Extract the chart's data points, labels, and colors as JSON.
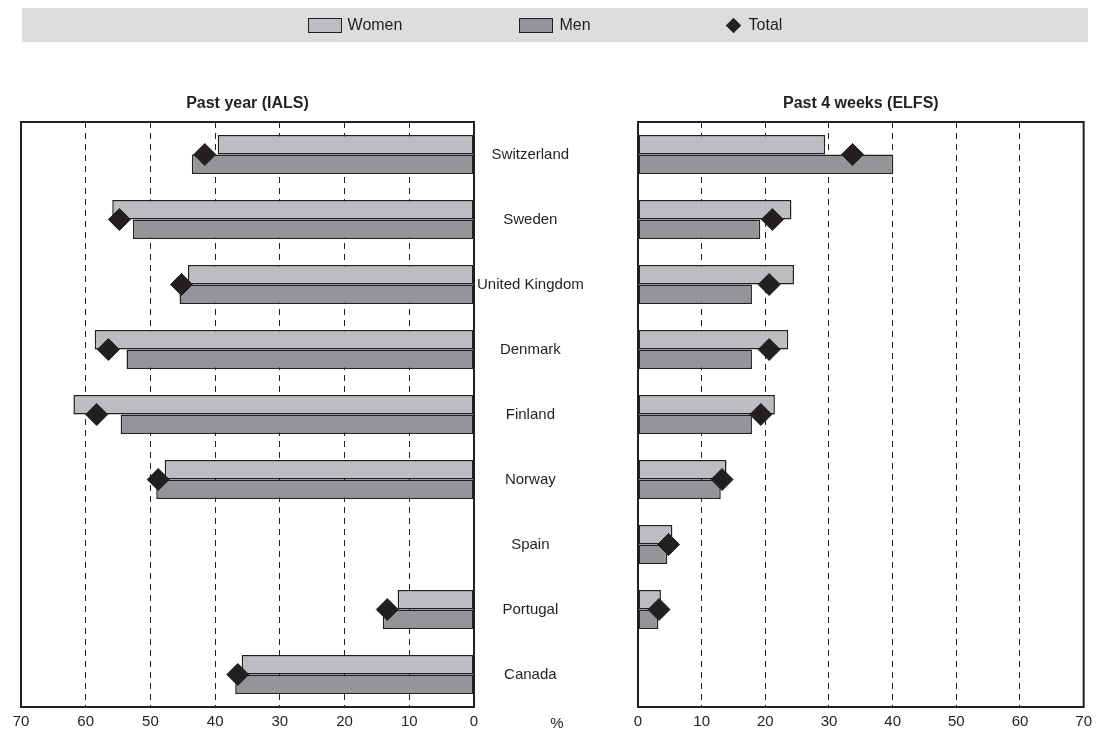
{
  "chart_data": [
    {
      "type": "bar",
      "orientation": "horizontal",
      "title": "Past year (IALS)",
      "xlabel": "%",
      "categories": [
        "Switzerland",
        "Sweden",
        "United Kingdom",
        "Denmark",
        "Finland",
        "Norway",
        "Spain",
        "Portugal",
        "Canada"
      ],
      "series": [
        {
          "name": "Women",
          "color": "#bcbdc0",
          "values": [
            39.6,
            55.9,
            44.2,
            58.6,
            61.9,
            47.8,
            null,
            11.8,
            35.9
          ]
        },
        {
          "name": "Men",
          "color": "#939598",
          "values": [
            43.6,
            52.7,
            45.5,
            53.7,
            54.6,
            49.1,
            null,
            14.1,
            36.9
          ]
        },
        {
          "name": "Total",
          "type": "scatter",
          "marker": "diamond",
          "color": "#231f20",
          "values": [
            41.6,
            54.8,
            45.2,
            56.5,
            58.3,
            48.8,
            null,
            13.4,
            36.5
          ]
        }
      ],
      "xlim": [
        70,
        0
      ],
      "xticks": [
        70,
        60,
        50,
        40,
        30,
        20,
        10,
        0
      ],
      "grid": "x",
      "legend": "top"
    },
    {
      "type": "bar",
      "orientation": "horizontal",
      "title": "Past 4 weeks (ELFS)",
      "categories": [
        null,
        null,
        null,
        null,
        null,
        null,
        null,
        null,
        null
      ],
      "series": [
        {
          "color": "#bcbdc0",
          "values": [
            29.4,
            24.1,
            24.5,
            23.6,
            21.5,
            13.9,
            5.4,
            3.6,
            null
          ]
        },
        {
          "color": "#939598",
          "values": [
            40.1,
            19.2,
            17.9,
            17.9,
            17.9,
            13.0,
            4.6,
            3.2,
            null
          ]
        },
        {
          "type": "scatter",
          "marker": "diamond",
          "color": "#231f20",
          "values": [
            33.7,
            21.1,
            20.6,
            20.6,
            19.3,
            13.2,
            4.8,
            3.3,
            null
          ]
        }
      ],
      "xlim": [
        0,
        70
      ],
      "xticks": [
        0,
        10,
        20,
        30,
        40,
        50,
        60,
        70
      ],
      "grid": "x",
      "tick_labels": "x"
    }
  ]
}
